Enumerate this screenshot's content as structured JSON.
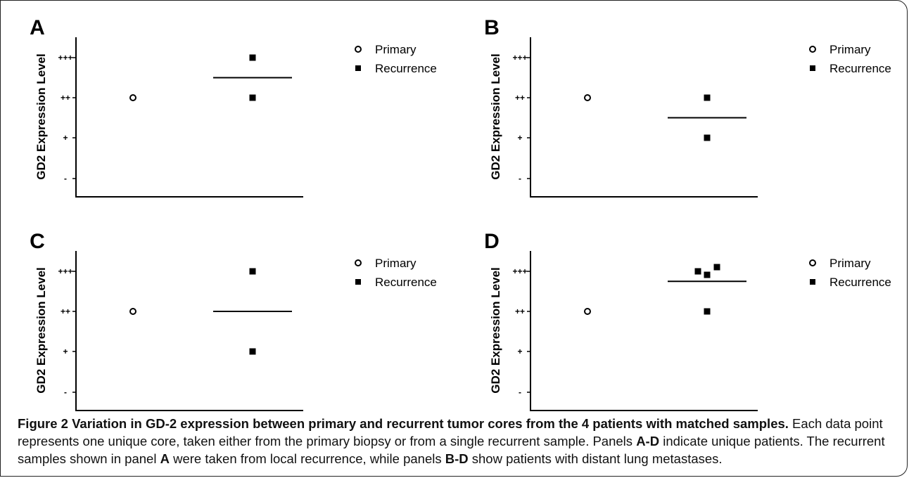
{
  "chart_data": [
    {
      "type": "scatter",
      "panel": "A",
      "ylabel": "GD2 Expression Level",
      "ytick_labels": [
        "-",
        "+",
        "++",
        "+++"
      ],
      "ylim": [
        0,
        3
      ],
      "series": [
        {
          "name": "Primary",
          "marker": "open-circle",
          "x": [
            "Primary"
          ],
          "y": [
            2
          ]
        },
        {
          "name": "Recurrence",
          "marker": "filled-square",
          "x": [
            "Recurrence",
            "Recurrence"
          ],
          "y": [
            3,
            2
          ],
          "mean": 2.5
        }
      ],
      "legend": "top-right"
    },
    {
      "type": "scatter",
      "panel": "B",
      "ylabel": "GD2 Expression Level",
      "ytick_labels": [
        "-",
        "+",
        "++",
        "+++"
      ],
      "ylim": [
        0,
        3
      ],
      "series": [
        {
          "name": "Primary",
          "marker": "open-circle",
          "x": [
            "Primary"
          ],
          "y": [
            2
          ]
        },
        {
          "name": "Recurrence",
          "marker": "filled-square",
          "x": [
            "Recurrence",
            "Recurrence"
          ],
          "y": [
            2,
            1
          ],
          "mean": 1.5
        }
      ],
      "legend": "top-right"
    },
    {
      "type": "scatter",
      "panel": "C",
      "ylabel": "GD2 Expression Level",
      "ytick_labels": [
        "-",
        "+",
        "++",
        "+++"
      ],
      "ylim": [
        0,
        3
      ],
      "series": [
        {
          "name": "Primary",
          "marker": "open-circle",
          "x": [
            "Primary"
          ],
          "y": [
            2
          ]
        },
        {
          "name": "Recurrence",
          "marker": "filled-square",
          "x": [
            "Recurrence",
            "Recurrence"
          ],
          "y": [
            3,
            1
          ],
          "mean": 2
        }
      ],
      "legend": "top-right"
    },
    {
      "type": "scatter",
      "panel": "D",
      "ylabel": "GD2 Expression Level",
      "ytick_labels": [
        "-",
        "+",
        "++",
        "+++"
      ],
      "ylim": [
        0,
        3
      ],
      "series": [
        {
          "name": "Primary",
          "marker": "open-circle",
          "x": [
            "Primary"
          ],
          "y": [
            2
          ]
        },
        {
          "name": "Recurrence",
          "marker": "filled-square",
          "x": [
            "Recurrence",
            "Recurrence",
            "Recurrence",
            "Recurrence"
          ],
          "y": [
            3,
            3,
            3,
            2
          ],
          "mean": 2.75
        }
      ],
      "legend": "top-right"
    }
  ],
  "caption": {
    "title": "Figure 2 Variation in GD-2 expression between primary and recurrent tumor cores from the 4 patients with matched samples.",
    "text_1": " Each data point represents one unique core, taken either from the primary biopsy or from a single recurrent sample. Panels ",
    "bold_1": "A-D",
    "text_2": " indicate unique patients. The recurrent samples shown in panel ",
    "bold_2": "A",
    "text_3": " were taken from local recurrence, while panels ",
    "bold_3": "B-D",
    "text_4": " show patients with distant lung metastases."
  }
}
